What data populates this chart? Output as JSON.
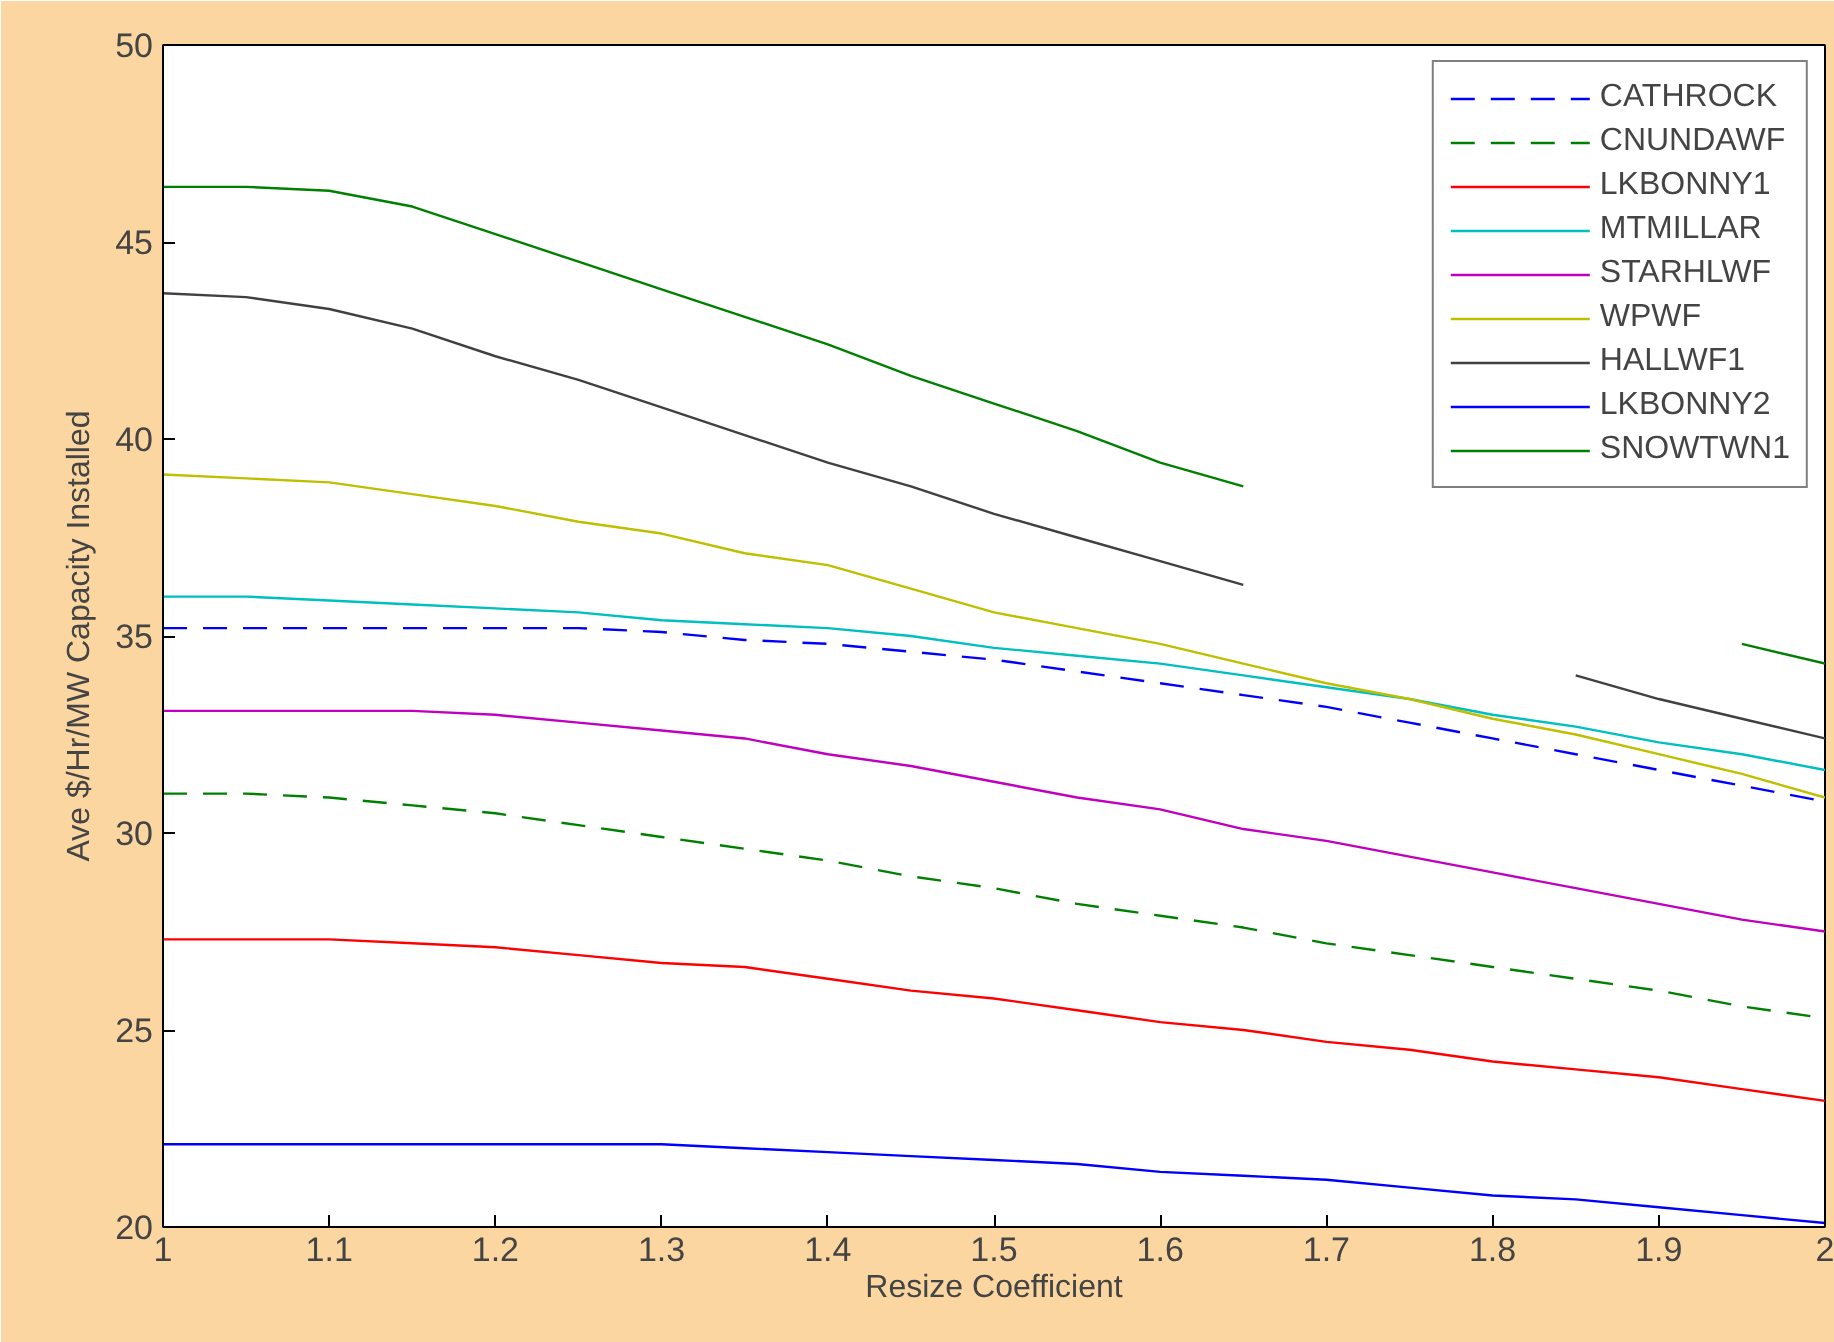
{
  "chart_data": {
    "type": "line",
    "xlabel": "Resize Coefficient",
    "ylabel": "Ave $/Hr/MW Capacity Installed",
    "x": [
      1,
      1.05,
      1.1,
      1.15,
      1.2,
      1.25,
      1.3,
      1.35,
      1.4,
      1.45,
      1.5,
      1.55,
      1.6,
      1.65,
      1.7,
      1.75,
      1.8,
      1.85,
      1.9,
      1.95,
      2
    ],
    "xlim": [
      1,
      2
    ],
    "xticks": [
      1,
      1.1,
      1.2,
      1.3,
      1.4,
      1.5,
      1.6,
      1.7,
      1.8,
      1.9,
      2
    ],
    "ylim": [
      20,
      50
    ],
    "yticks": [
      20,
      25,
      30,
      35,
      40,
      45,
      50
    ],
    "grid": false,
    "legend": "top right",
    "marker": "none",
    "series": [
      {
        "name": "CATHROCK",
        "color": "#0000ff",
        "line_style": "dashed",
        "values": [
          35.2,
          35.2,
          35.2,
          35.2,
          35.2,
          35.2,
          35.1,
          34.9,
          34.8,
          34.6,
          34.4,
          34.1,
          33.8,
          33.5,
          33.2,
          32.8,
          32.4,
          32.0,
          31.6,
          31.2,
          30.8
        ]
      },
      {
        "name": "CNUNDAWF",
        "color": "#008000",
        "line_style": "dashed",
        "values": [
          31.0,
          31.0,
          30.9,
          30.7,
          30.5,
          30.2,
          29.9,
          29.6,
          29.3,
          28.9,
          28.6,
          28.2,
          27.9,
          27.6,
          27.2,
          26.9,
          26.6,
          26.3,
          26.0,
          25.6,
          25.3
        ]
      },
      {
        "name": "LKBONNY1",
        "color": "#ff0000",
        "line_style": "solid",
        "values": [
          27.3,
          27.3,
          27.3,
          27.2,
          27.1,
          26.9,
          26.7,
          26.6,
          26.3,
          26.0,
          25.8,
          25.5,
          25.2,
          25.0,
          24.7,
          24.5,
          24.2,
          24.0,
          23.8,
          23.5,
          23.2
        ]
      },
      {
        "name": "MTMILLAR",
        "color": "#00bfbf",
        "line_style": "solid",
        "values": [
          36.0,
          36.0,
          35.9,
          35.8,
          35.7,
          35.6,
          35.4,
          35.3,
          35.2,
          35.0,
          34.7,
          34.5,
          34.3,
          34.0,
          33.7,
          33.4,
          33.0,
          32.7,
          32.3,
          32.0,
          31.6
        ]
      },
      {
        "name": "STARHLWF",
        "color": "#bf00bf",
        "line_style": "solid",
        "values": [
          33.1,
          33.1,
          33.1,
          33.1,
          33.0,
          32.8,
          32.6,
          32.4,
          32.0,
          31.7,
          31.3,
          30.9,
          30.6,
          30.1,
          29.8,
          29.4,
          29.0,
          28.6,
          28.2,
          27.8,
          27.5
        ]
      },
      {
        "name": "WPWF",
        "color": "#bfbf00",
        "line_style": "solid",
        "values": [
          39.1,
          39.0,
          38.9,
          38.6,
          38.3,
          37.9,
          37.6,
          37.1,
          36.8,
          36.2,
          35.6,
          35.2,
          34.8,
          34.3,
          33.8,
          33.4,
          32.9,
          32.5,
          32.0,
          31.5,
          30.9
        ]
      },
      {
        "name": "HALLWF1",
        "color": "#404040",
        "line_style": "solid",
        "values": [
          43.7,
          43.6,
          43.3,
          42.8,
          42.1,
          41.5,
          40.8,
          40.1,
          39.4,
          38.8,
          38.1,
          37.5,
          36.9,
          36.3,
          null,
          null,
          null,
          34.0,
          33.4,
          32.9,
          32.4
        ]
      },
      {
        "name": "LKBONNY2",
        "color": "#0000ff",
        "line_style": "solid",
        "values": [
          22.1,
          22.1,
          22.1,
          22.1,
          22.1,
          22.1,
          22.1,
          22.0,
          21.9,
          21.8,
          21.7,
          21.6,
          21.4,
          21.3,
          21.2,
          21.0,
          20.8,
          20.7,
          20.5,
          20.3,
          20.1
        ]
      },
      {
        "name": "SNOWTWN1",
        "color": "#008000",
        "line_style": "solid",
        "values": [
          46.4,
          46.4,
          46.3,
          45.9,
          45.2,
          44.5,
          43.8,
          43.1,
          42.4,
          41.6,
          40.9,
          40.2,
          39.4,
          38.8,
          null,
          null,
          null,
          null,
          null,
          34.8,
          34.3
        ]
      }
    ]
  }
}
